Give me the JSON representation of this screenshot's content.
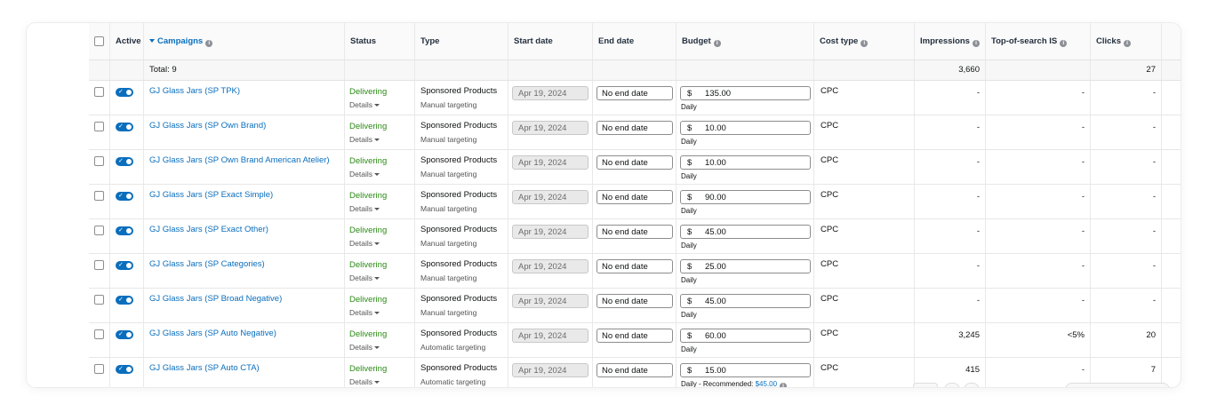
{
  "header": {
    "active": "Active",
    "campaigns": "Campaigns",
    "status": "Status",
    "type": "Type",
    "start_date": "Start date",
    "end_date": "End date",
    "budget": "Budget",
    "cost_type": "Cost type",
    "impressions": "Impressions",
    "top_of_search": "Top-of-search IS",
    "clicks": "Clicks"
  },
  "total": {
    "label": "Total: 9",
    "impressions": "3,660",
    "clicks": "27"
  },
  "rows": [
    {
      "name": "GJ Glass Jars (SP TPK)",
      "status": "Delivering",
      "details": "Details",
      "type": "Sponsored Products",
      "targeting": "Manual targeting",
      "start": "Apr 19, 2024",
      "end": "No end date",
      "currency": "$",
      "budget": "135.00",
      "budget_note": "Daily",
      "budget_rec": "",
      "cost": "CPC",
      "impressions": "-",
      "top": "-",
      "clicks": "-"
    },
    {
      "name": "GJ Glass Jars (SP Own Brand)",
      "status": "Delivering",
      "details": "Details",
      "type": "Sponsored Products",
      "targeting": "Manual targeting",
      "start": "Apr 19, 2024",
      "end": "No end date",
      "currency": "$",
      "budget": "10.00",
      "budget_note": "Daily",
      "budget_rec": "",
      "cost": "CPC",
      "impressions": "-",
      "top": "-",
      "clicks": "-"
    },
    {
      "name": "GJ Glass Jars (SP Own Brand American Atelier)",
      "status": "Delivering",
      "details": "Details",
      "type": "Sponsored Products",
      "targeting": "Manual targeting",
      "start": "Apr 19, 2024",
      "end": "No end date",
      "currency": "$",
      "budget": "10.00",
      "budget_note": "Daily",
      "budget_rec": "",
      "cost": "CPC",
      "impressions": "-",
      "top": "-",
      "clicks": "-"
    },
    {
      "name": "GJ Glass Jars (SP Exact Simple)",
      "status": "Delivering",
      "details": "Details",
      "type": "Sponsored Products",
      "targeting": "Manual targeting",
      "start": "Apr 19, 2024",
      "end": "No end date",
      "currency": "$",
      "budget": "90.00",
      "budget_note": "Daily",
      "budget_rec": "",
      "cost": "CPC",
      "impressions": "-",
      "top": "-",
      "clicks": "-"
    },
    {
      "name": "GJ Glass Jars (SP Exact Other)",
      "status": "Delivering",
      "details": "Details",
      "type": "Sponsored Products",
      "targeting": "Manual targeting",
      "start": "Apr 19, 2024",
      "end": "No end date",
      "currency": "$",
      "budget": "45.00",
      "budget_note": "Daily",
      "budget_rec": "",
      "cost": "CPC",
      "impressions": "-",
      "top": "-",
      "clicks": "-"
    },
    {
      "name": "GJ Glass Jars (SP Categories)",
      "status": "Delivering",
      "details": "Details",
      "type": "Sponsored Products",
      "targeting": "Manual targeting",
      "start": "Apr 19, 2024",
      "end": "No end date",
      "currency": "$",
      "budget": "25.00",
      "budget_note": "Daily",
      "budget_rec": "",
      "cost": "CPC",
      "impressions": "-",
      "top": "-",
      "clicks": "-"
    },
    {
      "name": "GJ Glass Jars (SP Broad Negative)",
      "status": "Delivering",
      "details": "Details",
      "type": "Sponsored Products",
      "targeting": "Manual targeting",
      "start": "Apr 19, 2024",
      "end": "No end date",
      "currency": "$",
      "budget": "45.00",
      "budget_note": "Daily",
      "budget_rec": "",
      "cost": "CPC",
      "impressions": "-",
      "top": "-",
      "clicks": "-"
    },
    {
      "name": "GJ Glass Jars (SP Auto Negative)",
      "status": "Delivering",
      "details": "Details",
      "type": "Sponsored Products",
      "targeting": "Automatic targeting",
      "start": "Apr 19, 2024",
      "end": "No end date",
      "currency": "$",
      "budget": "60.00",
      "budget_note": "Daily",
      "budget_rec": "",
      "cost": "CPC",
      "impressions": "3,245",
      "top": "<5%",
      "clicks": "20"
    },
    {
      "name": "GJ Glass Jars (SP Auto CTA)",
      "status": "Delivering",
      "details": "Details",
      "type": "Sponsored Products",
      "targeting": "Automatic targeting",
      "start": "Apr 19, 2024",
      "end": "No end date",
      "currency": "$",
      "budget": "15.00",
      "budget_note": "Daily - Recommended: ",
      "budget_rec": "$45.00",
      "cost": "CPC",
      "impressions": "415",
      "top": "-",
      "clicks": "7"
    }
  ],
  "colors": {
    "link": "#0a6ebd",
    "delivering": "#2b8a15",
    "toggle": "#0a6ebd"
  }
}
